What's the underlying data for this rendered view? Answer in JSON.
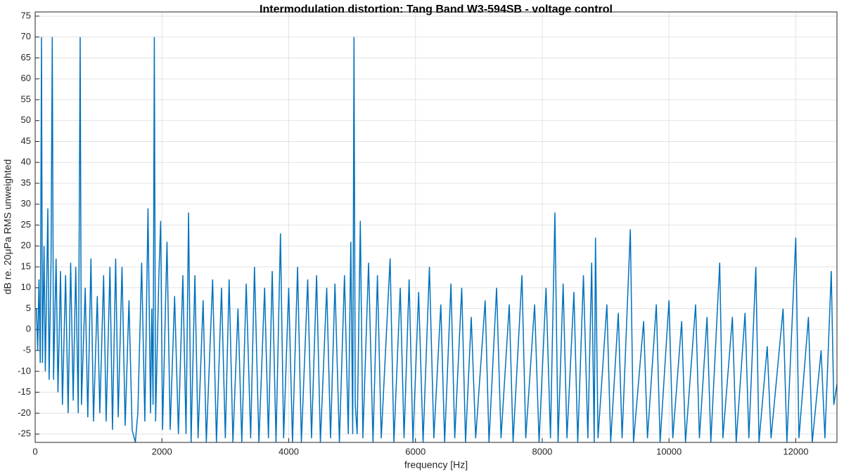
{
  "chart_data": {
    "type": "line",
    "title": "Intermodulation distortion: Tang Band W3-594SB - voltage control",
    "xlabel": "frequency [Hz]",
    "ylabel": "dB re. 20μPa RMS unweighted",
    "color": "#0072bd",
    "grid": true,
    "xlim": [
      0,
      12650
    ],
    "ylim": [
      -27,
      76
    ],
    "xticks": [
      0,
      2000,
      4000,
      6000,
      8000,
      10000,
      12000
    ],
    "yticks": [
      -25,
      -20,
      -15,
      -10,
      -5,
      0,
      5,
      10,
      15,
      20,
      25,
      30,
      35,
      40,
      45,
      50,
      55,
      60,
      65,
      70,
      75
    ],
    "x": [
      20,
      40,
      60,
      80,
      100,
      115,
      140,
      160,
      200,
      220,
      250,
      270,
      290,
      330,
      360,
      400,
      430,
      480,
      520,
      560,
      600,
      640,
      680,
      710,
      730,
      790,
      830,
      880,
      920,
      980,
      1020,
      1080,
      1120,
      1180,
      1220,
      1270,
      1310,
      1370,
      1420,
      1480,
      1530,
      1580,
      1620,
      1680,
      1730,
      1780,
      1820,
      1840,
      1860,
      1880,
      1900,
      1950,
      1980,
      2010,
      2080,
      2130,
      2200,
      2260,
      2330,
      2380,
      2420,
      2460,
      2520,
      2570,
      2650,
      2700,
      2800,
      2860,
      2940,
      3000,
      3060,
      3120,
      3200,
      3260,
      3330,
      3400,
      3460,
      3530,
      3620,
      3680,
      3740,
      3800,
      3870,
      3920,
      4000,
      4060,
      4140,
      4200,
      4300,
      4360,
      4440,
      4500,
      4600,
      4660,
      4730,
      4800,
      4880,
      4940,
      4980,
      5010,
      5030,
      5050,
      5080,
      5130,
      5170,
      5260,
      5330,
      5400,
      5460,
      5600,
      5660,
      5760,
      5820,
      5900,
      5960,
      6050,
      6120,
      6220,
      6290,
      6400,
      6460,
      6560,
      6620,
      6730,
      6790,
      6880,
      6950,
      7100,
      7160,
      7280,
      7350,
      7480,
      7540,
      7680,
      7740,
      7880,
      7950,
      8060,
      8130,
      8200,
      8250,
      8330,
      8390,
      8500,
      8560,
      8650,
      8720,
      8780,
      8820,
      8840,
      8880,
      9020,
      9080,
      9200,
      9260,
      9390,
      9440,
      9600,
      9660,
      9800,
      9860,
      10000,
      10060,
      10200,
      10260,
      10420,
      10480,
      10600,
      10660,
      10800,
      10850,
      11000,
      11060,
      11200,
      11260,
      11370,
      11420,
      11550,
      11610,
      11800,
      11860,
      12000,
      12050,
      12200,
      12260,
      12400,
      12460,
      12560,
      12600,
      12650
    ],
    "values": [
      5,
      -5,
      12,
      -8,
      70,
      -8,
      20,
      -10,
      29,
      -12,
      16,
      70,
      -12,
      17,
      -15,
      14,
      -18,
      13,
      -20,
      16,
      -17,
      15,
      -20,
      70,
      -18,
      10,
      -21,
      17,
      -22,
      8,
      -20,
      13,
      -22,
      15,
      -24,
      17,
      -21,
      15,
      -23,
      7,
      -24,
      -27,
      -20,
      16,
      -22,
      29,
      -20,
      5,
      -18,
      70,
      -22,
      12,
      26,
      -24,
      21,
      -24,
      8,
      -25,
      13,
      -25,
      28,
      -27,
      13,
      -26,
      7,
      -27,
      12,
      -27,
      10,
      -26,
      12,
      -27,
      5,
      -27,
      11,
      -26,
      15,
      -27,
      10,
      -26,
      14,
      -27,
      23,
      -26,
      10,
      -27,
      15,
      -27,
      12,
      -26,
      13,
      -27,
      10,
      -26,
      11,
      -27,
      13,
      -25,
      21,
      -25,
      70,
      -18,
      -25,
      26,
      -26,
      16,
      -27,
      13,
      -26,
      17,
      -27,
      10,
      -26,
      12,
      -27,
      9,
      -27,
      15,
      -26,
      6,
      -27,
      11,
      -26,
      10,
      -27,
      3,
      -26,
      7,
      -27,
      10,
      -26,
      6,
      -27,
      13,
      -26,
      6,
      -27,
      10,
      -26,
      28,
      -27,
      11,
      -26,
      9,
      -27,
      13,
      -26,
      16,
      -27,
      22,
      -26,
      6,
      -27,
      4,
      -26,
      24,
      -27,
      2,
      -26,
      6,
      -27,
      7,
      -26,
      2,
      -27,
      6,
      -26,
      3,
      -27,
      16,
      -26,
      3,
      -27,
      4,
      -26,
      15,
      -27,
      -4,
      -26,
      5,
      -27,
      22,
      -26,
      3,
      -27,
      -5,
      -26,
      14,
      -18,
      -13
    ]
  }
}
